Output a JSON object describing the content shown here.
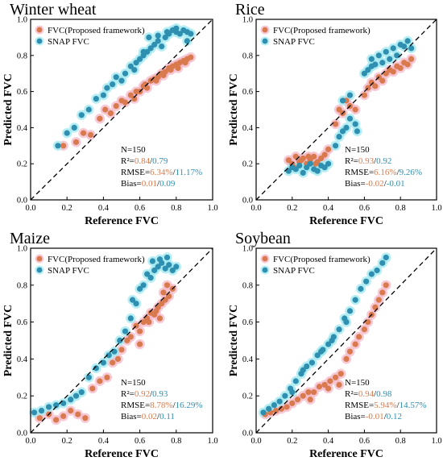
{
  "chart_data": [
    {
      "type": "scatter",
      "title": "Winter wheat",
      "xlabel": "Reference FVC",
      "ylabel": "Predicted FVC",
      "xlim": [
        0.0,
        1.0
      ],
      "ylim": [
        0.0,
        1.0
      ],
      "xticks": [
        "0.0",
        "0.2",
        "0.4",
        "0.6",
        "0.8",
        "1.0"
      ],
      "yticks": [
        "0.0",
        "0.2",
        "0.4",
        "0.6",
        "0.8",
        "1.0"
      ],
      "legend": [
        "FVC(Proposed framework)",
        "SNAP FVC"
      ],
      "legend_position": "top-left",
      "grid": false,
      "stats": {
        "n": "N=150",
        "r2_label": "R²=",
        "r2_a": "0.84",
        "r2_b": "0.79",
        "rmse_label": "RMSE=",
        "rmse_a": "6.34%",
        "rmse_b": "11.17%",
        "bias_label": "Bias=",
        "bias_a": "0.01",
        "bias_b": "0.09"
      },
      "series": [
        {
          "name": "FVC(Proposed framework)",
          "x": [
            0.18,
            0.25,
            0.29,
            0.33,
            0.38,
            0.41,
            0.44,
            0.47,
            0.5,
            0.52,
            0.55,
            0.57,
            0.6,
            0.62,
            0.64,
            0.66,
            0.68,
            0.7,
            0.72,
            0.74,
            0.76,
            0.78,
            0.8,
            0.82,
            0.84,
            0.86,
            0.88,
            0.58,
            0.63,
            0.69,
            0.73,
            0.77,
            0.81,
            0.85
          ],
          "y": [
            0.3,
            0.32,
            0.37,
            0.36,
            0.45,
            0.5,
            0.48,
            0.52,
            0.55,
            0.54,
            0.58,
            0.56,
            0.6,
            0.63,
            0.62,
            0.66,
            0.67,
            0.68,
            0.7,
            0.71,
            0.73,
            0.74,
            0.75,
            0.76,
            0.77,
            0.78,
            0.79,
            0.6,
            0.64,
            0.66,
            0.69,
            0.72,
            0.73,
            0.76
          ]
        },
        {
          "name": "SNAP FVC",
          "x": [
            0.15,
            0.2,
            0.24,
            0.28,
            0.32,
            0.36,
            0.4,
            0.42,
            0.45,
            0.47,
            0.5,
            0.52,
            0.55,
            0.57,
            0.6,
            0.62,
            0.64,
            0.66,
            0.68,
            0.7,
            0.72,
            0.74,
            0.76,
            0.78,
            0.8,
            0.82,
            0.84,
            0.86,
            0.88,
            0.65,
            0.7,
            0.75,
            0.8,
            0.58,
            0.62,
            0.86
          ],
          "y": [
            0.3,
            0.37,
            0.4,
            0.47,
            0.5,
            0.56,
            0.58,
            0.62,
            0.64,
            0.68,
            0.66,
            0.7,
            0.74,
            0.72,
            0.78,
            0.8,
            0.82,
            0.84,
            0.86,
            0.88,
            0.85,
            0.9,
            0.92,
            0.94,
            0.93,
            0.92,
            0.94,
            0.93,
            0.92,
            0.9,
            0.91,
            0.93,
            0.95,
            0.76,
            0.82,
            0.88
          ]
        }
      ]
    },
    {
      "type": "scatter",
      "title": "Rice",
      "xlabel": "Reference FVC",
      "ylabel": "Predicted FVC",
      "xlim": [
        0.0,
        1.0
      ],
      "ylim": [
        0.0,
        1.0
      ],
      "xticks": [
        "0.0",
        "0.2",
        "0.4",
        "0.6",
        "0.8",
        "1.0"
      ],
      "yticks": [
        "0.0",
        "0.2",
        "0.4",
        "0.6",
        "0.8",
        "1.0"
      ],
      "legend": [
        "FVC(Proposed framework)",
        "SNAP FVC"
      ],
      "legend_position": "top-left",
      "grid": false,
      "stats": {
        "n": "N=150",
        "r2_label": "R²=",
        "r2_a": "0.93",
        "r2_b": "0.92",
        "rmse_label": "RMSE=",
        "rmse_a": "6.16%",
        "rmse_b": "9.26%",
        "bias_label": "Bias=",
        "bias_a": "-0.02",
        "bias_b": "-0.01"
      },
      "series": [
        {
          "name": "FVC(Proposed framework)",
          "x": [
            0.18,
            0.2,
            0.22,
            0.24,
            0.26,
            0.28,
            0.3,
            0.32,
            0.34,
            0.36,
            0.38,
            0.4,
            0.44,
            0.46,
            0.48,
            0.5,
            0.52,
            0.55,
            0.6,
            0.62,
            0.64,
            0.66,
            0.68,
            0.7,
            0.72,
            0.74,
            0.76,
            0.78,
            0.8,
            0.82,
            0.84,
            0.86,
            0.21,
            0.25,
            0.29,
            0.33
          ],
          "y": [
            0.22,
            0.2,
            0.24,
            0.21,
            0.23,
            0.2,
            0.22,
            0.24,
            0.21,
            0.23,
            0.25,
            0.28,
            0.42,
            0.5,
            0.48,
            0.55,
            0.52,
            0.5,
            0.58,
            0.62,
            0.65,
            0.63,
            0.68,
            0.66,
            0.7,
            0.72,
            0.71,
            0.74,
            0.73,
            0.76,
            0.75,
            0.78,
            0.18,
            0.22,
            0.24,
            0.2
          ]
        },
        {
          "name": "SNAP FVC",
          "x": [
            0.18,
            0.2,
            0.22,
            0.24,
            0.26,
            0.28,
            0.3,
            0.32,
            0.34,
            0.36,
            0.38,
            0.4,
            0.44,
            0.46,
            0.48,
            0.5,
            0.52,
            0.55,
            0.6,
            0.62,
            0.64,
            0.66,
            0.68,
            0.7,
            0.72,
            0.74,
            0.76,
            0.78,
            0.8,
            0.82,
            0.84,
            0.86,
            0.48,
            0.52,
            0.56,
            0.64
          ],
          "y": [
            0.16,
            0.18,
            0.17,
            0.19,
            0.15,
            0.18,
            0.2,
            0.17,
            0.16,
            0.19,
            0.18,
            0.2,
            0.3,
            0.35,
            0.38,
            0.4,
            0.45,
            0.42,
            0.7,
            0.72,
            0.78,
            0.75,
            0.8,
            0.76,
            0.82,
            0.78,
            0.84,
            0.8,
            0.86,
            0.85,
            0.88,
            0.84,
            0.55,
            0.58,
            0.38,
            0.74
          ]
        }
      ]
    },
    {
      "type": "scatter",
      "title": "Maize",
      "xlabel": "Reference FVC",
      "ylabel": "Predicted FVC",
      "xlim": [
        0.0,
        1.0
      ],
      "ylim": [
        0.0,
        1.0
      ],
      "xticks": [
        "0.0",
        "0.2",
        "0.4",
        "0.6",
        "0.8",
        "1.0"
      ],
      "yticks": [
        "0.0",
        "0.2",
        "0.4",
        "0.6",
        "0.8",
        "1.0"
      ],
      "legend": [
        "FVC(Proposed framework)",
        "SNAP FVC"
      ],
      "legend_position": "top-left",
      "grid": false,
      "stats": {
        "n": "N=150",
        "r2_label": "R²=",
        "r2_a": "0.92",
        "r2_b": "0.93",
        "rmse_label": "RMSE=",
        "rmse_a": "8.78%",
        "rmse_b": "16.29%",
        "bias_label": "Bias=",
        "bias_a": "0.02",
        "bias_b": "0.11"
      },
      "series": [
        {
          "name": "FVC(Proposed framework)",
          "x": [
            0.05,
            0.1,
            0.14,
            0.18,
            0.22,
            0.26,
            0.3,
            0.34,
            0.38,
            0.42,
            0.45,
            0.48,
            0.5,
            0.53,
            0.55,
            0.58,
            0.6,
            0.62,
            0.64,
            0.66,
            0.68,
            0.7,
            0.72,
            0.74,
            0.76,
            0.78,
            0.65,
            0.69,
            0.73,
            0.6,
            0.71,
            0.75
          ],
          "y": [
            0.08,
            0.1,
            0.07,
            0.09,
            0.12,
            0.1,
            0.08,
            0.24,
            0.28,
            0.3,
            0.38,
            0.4,
            0.45,
            0.5,
            0.52,
            0.58,
            0.55,
            0.6,
            0.62,
            0.65,
            0.64,
            0.68,
            0.7,
            0.72,
            0.74,
            0.78,
            0.6,
            0.66,
            0.76,
            0.48,
            0.62,
            0.8
          ]
        },
        {
          "name": "SNAP FVC",
          "x": [
            0.02,
            0.06,
            0.1,
            0.14,
            0.18,
            0.22,
            0.25,
            0.28,
            0.32,
            0.36,
            0.4,
            0.43,
            0.46,
            0.49,
            0.52,
            0.55,
            0.58,
            0.6,
            0.62,
            0.64,
            0.66,
            0.68,
            0.7,
            0.72,
            0.74,
            0.76,
            0.78,
            0.8,
            0.67,
            0.71,
            0.75,
            0.56
          ],
          "y": [
            0.11,
            0.12,
            0.14,
            0.15,
            0.16,
            0.18,
            0.2,
            0.22,
            0.3,
            0.35,
            0.38,
            0.42,
            0.44,
            0.5,
            0.55,
            0.62,
            0.7,
            0.78,
            0.8,
            0.86,
            0.84,
            0.88,
            0.9,
            0.92,
            0.89,
            0.91,
            0.88,
            0.9,
            0.93,
            0.94,
            0.95,
            0.72
          ]
        }
      ]
    },
    {
      "type": "scatter",
      "title": "Soybean",
      "xlabel": "Reference FVC",
      "ylabel": "Predicted FVC",
      "xlim": [
        0.0,
        1.0
      ],
      "ylim": [
        0.0,
        1.0
      ],
      "xticks": [
        "0.0",
        "0.2",
        "0.4",
        "0.6",
        "0.8",
        "1.0"
      ],
      "yticks": [
        "0.0",
        "0.2",
        "0.4",
        "0.6",
        "0.8",
        "1.0"
      ],
      "legend": [
        "FVC(Proposed framework)",
        "SNAP FVC"
      ],
      "legend_position": "top-left",
      "grid": false,
      "stats": {
        "n": "N=150",
        "r2_label": "R²=",
        "r2_a": "0.94",
        "r2_b": "0.98",
        "rmse_label": "RMSE=",
        "rmse_a": "5.94%",
        "rmse_b": "14.57%",
        "bias_label": "Bias=",
        "bias_a": "-0.01",
        "bias_b": "0.12"
      },
      "series": [
        {
          "name": "FVC(Proposed framework)",
          "x": [
            0.05,
            0.08,
            0.11,
            0.14,
            0.17,
            0.2,
            0.23,
            0.26,
            0.29,
            0.32,
            0.35,
            0.38,
            0.41,
            0.44,
            0.47,
            0.5,
            0.52,
            0.55,
            0.57,
            0.6,
            0.62,
            0.64,
            0.66,
            0.68,
            0.7,
            0.72,
            0.3,
            0.4,
            0.46
          ],
          "y": [
            0.1,
            0.11,
            0.12,
            0.13,
            0.14,
            0.16,
            0.18,
            0.2,
            0.22,
            0.22,
            0.25,
            0.26,
            0.28,
            0.3,
            0.32,
            0.4,
            0.44,
            0.48,
            0.52,
            0.56,
            0.6,
            0.64,
            0.68,
            0.72,
            0.76,
            0.8,
            0.18,
            0.24,
            0.26
          ]
        },
        {
          "name": "SNAP FVC",
          "x": [
            0.04,
            0.07,
            0.1,
            0.13,
            0.16,
            0.19,
            0.22,
            0.25,
            0.28,
            0.31,
            0.34,
            0.37,
            0.4,
            0.43,
            0.46,
            0.49,
            0.52,
            0.55,
            0.58,
            0.61,
            0.64,
            0.67,
            0.7,
            0.72,
            0.2,
            0.26,
            0.36,
            0.42,
            0.5
          ],
          "y": [
            0.11,
            0.13,
            0.15,
            0.17,
            0.2,
            0.24,
            0.28,
            0.32,
            0.36,
            0.38,
            0.42,
            0.45,
            0.48,
            0.52,
            0.56,
            0.62,
            0.66,
            0.72,
            0.78,
            0.82,
            0.86,
            0.88,
            0.92,
            0.95,
            0.22,
            0.34,
            0.44,
            0.5,
            0.6
          ]
        }
      ]
    }
  ],
  "colors": {
    "proposed": "#d97a4e",
    "snap": "#2f8fb0",
    "proposed_halo": "#f4b8c8",
    "snap_halo": "#9fe8f0",
    "axis": "#000000"
  }
}
